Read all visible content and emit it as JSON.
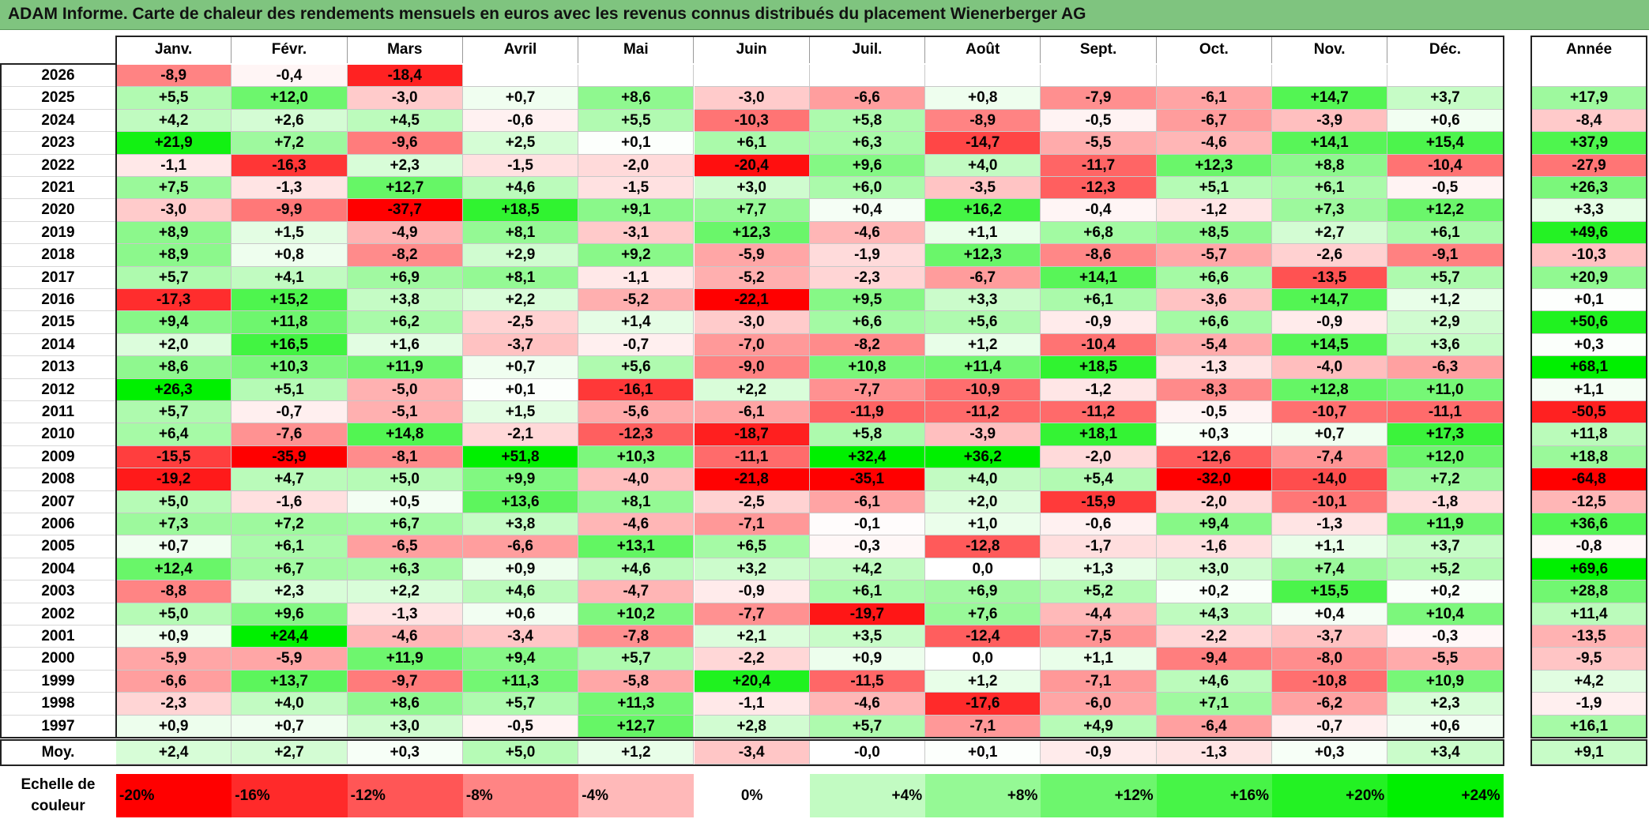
{
  "title": "ADAM Informe. Carte de chaleur des rendements mensuels en euros avec les revenus connus distribués du placement Wienerberger AG",
  "chart_data": {
    "type": "heatmap",
    "columns": [
      "Janv.",
      "Févr.",
      "Mars",
      "Avril",
      "Mai",
      "Juin",
      "Juil.",
      "Août",
      "Sept.",
      "Oct.",
      "Nov.",
      "Déc."
    ],
    "year_column": "Année",
    "rows": [
      {
        "year": "2026",
        "values": [
          "-8,9",
          "-0,4",
          "-18,4",
          "",
          "",
          "",
          "",
          "",
          "",
          "",
          "",
          ""
        ],
        "annual": ""
      },
      {
        "year": "2025",
        "values": [
          "+5,5",
          "+12,0",
          "-3,0",
          "+0,7",
          "+8,6",
          "-3,0",
          "-6,6",
          "+0,8",
          "-7,9",
          "-6,1",
          "+14,7",
          "+3,7"
        ],
        "annual": "+17,9"
      },
      {
        "year": "2024",
        "values": [
          "+4,2",
          "+2,6",
          "+4,5",
          "-0,6",
          "+5,5",
          "-10,3",
          "+5,8",
          "-8,9",
          "-0,5",
          "-6,7",
          "-3,9",
          "+0,6"
        ],
        "annual": "-8,4"
      },
      {
        "year": "2023",
        "values": [
          "+21,9",
          "+7,2",
          "-9,6",
          "+2,5",
          "+0,1",
          "+6,1",
          "+6,3",
          "-14,7",
          "-5,5",
          "-4,6",
          "+14,1",
          "+15,4"
        ],
        "annual": "+37,9"
      },
      {
        "year": "2022",
        "values": [
          "-1,1",
          "-16,3",
          "+2,3",
          "-1,5",
          "-2,0",
          "-20,4",
          "+9,6",
          "+4,0",
          "-11,7",
          "+12,3",
          "+8,8",
          "-10,4"
        ],
        "annual": "-27,9"
      },
      {
        "year": "2021",
        "values": [
          "+7,5",
          "-1,3",
          "+12,7",
          "+4,6",
          "-1,5",
          "+3,0",
          "+6,0",
          "-3,5",
          "-12,3",
          "+5,1",
          "+6,1",
          "-0,5"
        ],
        "annual": "+26,3"
      },
      {
        "year": "2020",
        "values": [
          "-3,0",
          "-9,9",
          "-37,7",
          "+18,5",
          "+9,1",
          "+7,7",
          "+0,4",
          "+16,2",
          "-0,4",
          "-1,2",
          "+7,3",
          "+12,2"
        ],
        "annual": "+3,3"
      },
      {
        "year": "2019",
        "values": [
          "+8,9",
          "+1,5",
          "-4,9",
          "+8,1",
          "-3,1",
          "+12,3",
          "-4,6",
          "+1,1",
          "+6,8",
          "+8,5",
          "+2,7",
          "+6,1"
        ],
        "annual": "+49,6"
      },
      {
        "year": "2018",
        "values": [
          "+8,9",
          "+0,8",
          "-8,2",
          "+2,9",
          "+9,2",
          "-5,9",
          "-1,9",
          "+12,3",
          "-8,6",
          "-5,7",
          "-2,6",
          "-9,1"
        ],
        "annual": "-10,3"
      },
      {
        "year": "2017",
        "values": [
          "+5,7",
          "+4,1",
          "+6,9",
          "+8,1",
          "-1,1",
          "-5,2",
          "-2,3",
          "-6,7",
          "+14,1",
          "+6,6",
          "-13,5",
          "+5,7"
        ],
        "annual": "+20,9"
      },
      {
        "year": "2016",
        "values": [
          "-17,3",
          "+15,2",
          "+3,8",
          "+2,2",
          "-5,2",
          "-22,1",
          "+9,5",
          "+3,3",
          "+6,1",
          "-3,6",
          "+14,7",
          "+1,2"
        ],
        "annual": "+0,1"
      },
      {
        "year": "2015",
        "values": [
          "+9,4",
          "+11,8",
          "+6,2",
          "-2,5",
          "+1,4",
          "-3,0",
          "+6,6",
          "+5,6",
          "-0,9",
          "+6,6",
          "-0,9",
          "+2,9"
        ],
        "annual": "+50,6"
      },
      {
        "year": "2014",
        "values": [
          "+2,0",
          "+16,5",
          "+1,6",
          "-3,7",
          "-0,7",
          "-7,0",
          "-8,2",
          "+1,2",
          "-10,4",
          "-5,4",
          "+14,5",
          "+3,6"
        ],
        "annual": "+0,3"
      },
      {
        "year": "2013",
        "values": [
          "+8,6",
          "+10,3",
          "+11,9",
          "+0,7",
          "+5,6",
          "-9,0",
          "+10,8",
          "+11,4",
          "+18,5",
          "-1,3",
          "-4,0",
          "-6,3"
        ],
        "annual": "+68,1"
      },
      {
        "year": "2012",
        "values": [
          "+26,3",
          "+5,1",
          "-5,0",
          "+0,1",
          "-16,1",
          "+2,2",
          "-7,7",
          "-10,9",
          "-1,2",
          "-8,3",
          "+12,8",
          "+11,0"
        ],
        "annual": "+1,1"
      },
      {
        "year": "2011",
        "values": [
          "+5,7",
          "-0,7",
          "-5,1",
          "+1,5",
          "-5,6",
          "-6,1",
          "-11,9",
          "-11,2",
          "-11,2",
          "-0,5",
          "-10,7",
          "-11,1"
        ],
        "annual": "-50,5"
      },
      {
        "year": "2010",
        "values": [
          "+6,4",
          "-7,6",
          "+14,8",
          "-2,1",
          "-12,3",
          "-18,7",
          "+5,8",
          "-3,9",
          "+18,1",
          "+0,3",
          "+0,7",
          "+17,3"
        ],
        "annual": "+11,8"
      },
      {
        "year": "2009",
        "values": [
          "-15,5",
          "-35,9",
          "-8,1",
          "+51,8",
          "+10,3",
          "-11,1",
          "+32,4",
          "+36,2",
          "-2,0",
          "-12,6",
          "-7,4",
          "+12,0"
        ],
        "annual": "+18,8"
      },
      {
        "year": "2008",
        "values": [
          "-19,2",
          "+4,7",
          "+5,0",
          "+9,9",
          "-4,0",
          "-21,8",
          "-35,1",
          "+4,0",
          "+5,4",
          "-32,0",
          "-14,0",
          "+7,2"
        ],
        "annual": "-64,8"
      },
      {
        "year": "2007",
        "values": [
          "+5,0",
          "-1,6",
          "+0,5",
          "+13,6",
          "+8,1",
          "-2,5",
          "-6,1",
          "+2,0",
          "-15,9",
          "-2,0",
          "-10,1",
          "-1,8"
        ],
        "annual": "-12,5"
      },
      {
        "year": "2006",
        "values": [
          "+7,3",
          "+7,2",
          "+6,7",
          "+3,8",
          "-4,6",
          "-7,1",
          "-0,1",
          "+1,0",
          "-0,6",
          "+9,4",
          "-1,3",
          "+11,9"
        ],
        "annual": "+36,6"
      },
      {
        "year": "2005",
        "values": [
          "+0,7",
          "+6,1",
          "-6,5",
          "-6,6",
          "+13,1",
          "+6,5",
          "-0,3",
          "-12,8",
          "-1,7",
          "-1,6",
          "+1,1",
          "+3,7"
        ],
        "annual": "-0,8"
      },
      {
        "year": "2004",
        "values": [
          "+12,4",
          "+6,7",
          "+6,3",
          "+0,9",
          "+4,6",
          "+3,2",
          "+4,2",
          "0,0",
          "+1,3",
          "+3,0",
          "+7,4",
          "+5,2"
        ],
        "annual": "+69,6"
      },
      {
        "year": "2003",
        "values": [
          "-8,8",
          "+2,3",
          "+2,2",
          "+4,6",
          "-4,7",
          "-0,9",
          "+6,1",
          "+6,9",
          "+5,2",
          "+0,2",
          "+15,5",
          "+0,2"
        ],
        "annual": "+28,8"
      },
      {
        "year": "2002",
        "values": [
          "+5,0",
          "+9,6",
          "-1,3",
          "+0,6",
          "+10,2",
          "-7,7",
          "-19,7",
          "+7,6",
          "-4,4",
          "+4,3",
          "+0,4",
          "+10,4"
        ],
        "annual": "+11,4"
      },
      {
        "year": "2001",
        "values": [
          "+0,9",
          "+24,4",
          "-4,6",
          "-3,4",
          "-7,8",
          "+2,1",
          "+3,5",
          "-12,4",
          "-7,5",
          "-2,2",
          "-3,7",
          "-0,3"
        ],
        "annual": "-13,5"
      },
      {
        "year": "2000",
        "values": [
          "-5,9",
          "-5,9",
          "+11,9",
          "+9,4",
          "+5,7",
          "-2,2",
          "+0,9",
          "0,0",
          "+1,1",
          "-9,4",
          "-8,0",
          "-5,5"
        ],
        "annual": "-9,5"
      },
      {
        "year": "1999",
        "values": [
          "-6,6",
          "+13,7",
          "-9,7",
          "+11,3",
          "-5,8",
          "+20,4",
          "-11,5",
          "+1,2",
          "-7,1",
          "+4,6",
          "-10,8",
          "+10,9"
        ],
        "annual": "+4,2"
      },
      {
        "year": "1998",
        "values": [
          "-2,3",
          "+4,0",
          "+8,6",
          "+5,7",
          "+11,3",
          "-1,1",
          "-4,6",
          "-17,6",
          "-6,0",
          "+7,1",
          "-6,2",
          "+2,3"
        ],
        "annual": "-1,9"
      },
      {
        "year": "1997",
        "values": [
          "+0,9",
          "+0,7",
          "+3,0",
          "-0,5",
          "+12,7",
          "+2,8",
          "+5,7",
          "-7,1",
          "+4,9",
          "-6,4",
          "-0,7",
          "+0,6"
        ],
        "annual": "+16,1"
      }
    ],
    "average": {
      "label": "Moy.",
      "values": [
        "+2,4",
        "+2,7",
        "+0,3",
        "+5,0",
        "+1,2",
        "-3,4",
        "-0,0",
        "+0,1",
        "-0,9",
        "-1,3",
        "+0,3",
        "+3,4"
      ],
      "annual": "+9,1"
    },
    "scale": {
      "label": "Echelle de couleur",
      "stops": [
        {
          "label": "-20%",
          "value": -20
        },
        {
          "label": "-16%",
          "value": -16
        },
        {
          "label": "-12%",
          "value": -12
        },
        {
          "label": "-8%",
          "value": -8
        },
        {
          "label": "-4%",
          "value": -4
        },
        {
          "label": "0%",
          "value": 0
        },
        {
          "label": "+4%",
          "value": 4
        },
        {
          "label": "+8%",
          "value": 8
        },
        {
          "label": "+12%",
          "value": 12
        },
        {
          "label": "+16%",
          "value": 16
        },
        {
          "label": "+20%",
          "value": 20
        },
        {
          "label": "+24%",
          "value": 24
        }
      ]
    },
    "colors": {
      "negative_max": "#ff0000",
      "neutral": "#ffffff",
      "positive_max": "#00f000",
      "title_bar": "#7fc47f"
    }
  }
}
